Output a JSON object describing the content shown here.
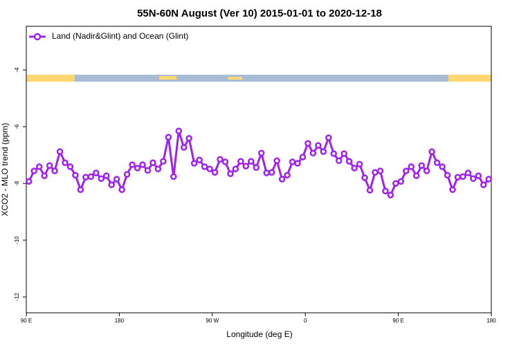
{
  "chart_data": {
    "type": "line",
    "title": "55N-60N August (Ver 10)   2015-01-01 to 2020-12-18",
    "x_label": "Longitude (deg E)",
    "y_label": "XCO2 - MLO trend (ppm)",
    "x": [
      92.5,
      97.5,
      102.5,
      107.5,
      112.5,
      117.5,
      122.5,
      127.5,
      132.5,
      137.5,
      142.5,
      147.5,
      152.5,
      157.5,
      162.5,
      167.5,
      172.5,
      177.5,
      182.5,
      187.5,
      192.5,
      197.5,
      202.5,
      207.5,
      212.5,
      217.5,
      222.5,
      227.5,
      232.5,
      237.5,
      242.5,
      247.5,
      252.5,
      257.5,
      262.5,
      267.5,
      272.5,
      277.5,
      282.5,
      287.5,
      292.5,
      297.5,
      302.5,
      307.5,
      312.5,
      317.5,
      322.5,
      327.5,
      332.5,
      337.5,
      342.5,
      347.5,
      352.5,
      357.5,
      362.5,
      367.5,
      372.5,
      377.5,
      382.5,
      387.5,
      392.5,
      397.5,
      402.5,
      407.5,
      412.5,
      417.5,
      422.5,
      427.5,
      432.5,
      437.5,
      442.5,
      447.5,
      452.5,
      457.5,
      462.5,
      467.5,
      472.5,
      477.5,
      482.5,
      487.5,
      492.5,
      497.5,
      502.5,
      507.5,
      512.5,
      517.5,
      522.5,
      527.5,
      532.5,
      537.5
    ],
    "series": [
      {
        "name": "Land (Nadir&Glint) and Ocean (Glint)",
        "color": "#a020f0",
        "values": [
          -7.93,
          -7.56,
          -7.41,
          -7.73,
          -7.37,
          -7.56,
          -6.88,
          -7.27,
          -7.41,
          -7.71,
          -8.22,
          -7.78,
          -7.76,
          -7.63,
          -7.83,
          -7.73,
          -8.05,
          -7.85,
          -8.22,
          -7.68,
          -7.34,
          -7.46,
          -7.34,
          -7.54,
          -7.27,
          -7.49,
          -7.22,
          -6.37,
          -7.76,
          -6.15,
          -6.73,
          -6.41,
          -7.29,
          -7.17,
          -7.41,
          -7.49,
          -7.61,
          -7.15,
          -7.24,
          -7.66,
          -7.49,
          -7.22,
          -7.39,
          -7.22,
          -7.44,
          -6.93,
          -7.63,
          -7.61,
          -7.2,
          -7.85,
          -7.71,
          -7.24,
          -7.29,
          -7.07,
          -6.59,
          -6.93,
          -6.66,
          -6.88,
          -6.39,
          -6.95,
          -7.2,
          -6.95,
          -7.22,
          -7.46,
          -7.32,
          -7.8,
          -8.24,
          -7.61,
          -7.56,
          -8.27,
          -8.41,
          -8,
          -7.93,
          -7.56,
          -7.41,
          -7.73,
          -7.37,
          -7.56,
          -6.88,
          -7.27,
          -7.41,
          -7.71,
          -8.22,
          -7.78,
          -7.76,
          -7.63,
          -7.83,
          -7.73,
          -8.05,
          -7.85
        ]
      }
    ],
    "xlim": [
      90,
      540
    ],
    "xticks": [
      {
        "value": 90,
        "label": "90 E"
      },
      180,
      {
        "value": 270,
        "label": "90 W"
      },
      {
        "value": 360,
        "label": "0"
      },
      {
        "value": 450,
        "label": "90 E"
      },
      {
        "value": 540,
        "label": "180"
      }
    ],
    "ylim": [
      -12.56,
      -2.46
    ],
    "yticks": [
      -12,
      -10,
      -8,
      -6,
      -4
    ],
    "grid": false,
    "legend": "top-left"
  }
}
